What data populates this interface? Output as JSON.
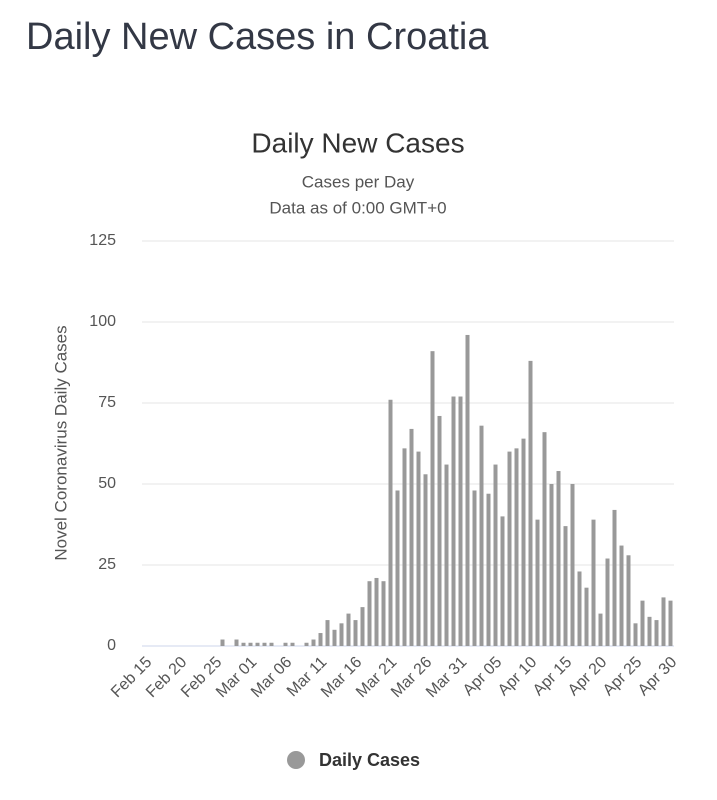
{
  "page_title": "Daily New Cases in Croatia",
  "chart_data": {
    "type": "bar",
    "title": "Daily New Cases",
    "subtitle": [
      "Cases per Day",
      "Data as of 0:00 GMT+0"
    ],
    "y_label": "Novel Coronavirus Daily Cases",
    "categories": [
      "Feb 15",
      null,
      null,
      null,
      null,
      "Feb 20",
      null,
      null,
      null,
      null,
      "Feb 25",
      null,
      null,
      null,
      null,
      "Mar 01",
      null,
      null,
      null,
      null,
      "Mar 06",
      null,
      null,
      null,
      null,
      "Mar 11",
      null,
      null,
      null,
      null,
      "Mar 16",
      null,
      null,
      null,
      null,
      "Mar 21",
      null,
      null,
      null,
      null,
      "Mar 26",
      null,
      null,
      null,
      null,
      "Mar 31",
      null,
      null,
      null,
      null,
      "Apr 05",
      null,
      null,
      null,
      null,
      "Apr 10",
      null,
      null,
      null,
      null,
      "Apr 15",
      null,
      null,
      null,
      null,
      "Apr 20",
      null,
      null,
      null,
      null,
      "Apr 25",
      null,
      null,
      null,
      null,
      "Apr 30"
    ],
    "series": [
      {
        "name": "Daily Cases",
        "color": "#999999",
        "values": [
          0,
          0,
          0,
          0,
          0,
          0,
          0,
          0,
          0,
          0,
          0,
          2,
          0,
          2,
          1,
          1,
          1,
          1,
          1,
          0,
          1,
          1,
          0,
          1,
          2,
          4,
          8,
          5,
          7,
          10,
          8,
          12,
          20,
          21,
          20,
          76,
          48,
          61,
          67,
          60,
          53,
          91,
          71,
          56,
          77,
          77,
          96,
          48,
          68,
          47,
          56,
          40,
          60,
          61,
          64,
          88,
          39,
          66,
          50,
          54,
          37,
          50,
          23,
          18,
          39,
          10,
          27,
          42,
          31,
          28,
          7,
          14,
          9,
          8,
          15,
          14
        ]
      }
    ],
    "ylim": [
      0,
      125
    ],
    "yticks": [
      0,
      25,
      50,
      75,
      100,
      125
    ],
    "grid": true,
    "legend": "bottom"
  }
}
